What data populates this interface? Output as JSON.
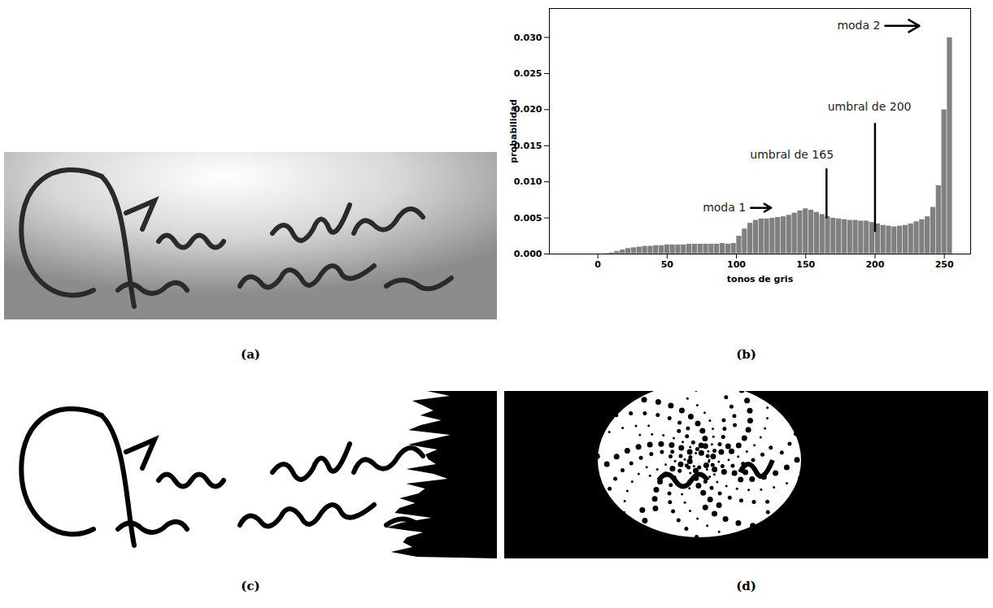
{
  "panel_labels": [
    "(a)",
    "(b)",
    "(c)",
    "(d)"
  ],
  "chart_data": {
    "type": "histogram",
    "x_label": "tonos de gris",
    "y_label": "probabilidad",
    "color": "#808080",
    "bins": [
      0,
      4,
      8,
      12,
      16,
      20,
      24,
      28,
      32,
      36,
      40,
      44,
      48,
      52,
      56,
      60,
      64,
      68,
      72,
      76,
      80,
      84,
      88,
      92,
      96,
      100,
      104,
      108,
      112,
      116,
      120,
      124,
      128,
      132,
      136,
      140,
      144,
      148,
      152,
      156,
      160,
      164,
      168,
      172,
      176,
      180,
      184,
      188,
      192,
      196,
      200,
      204,
      208,
      212,
      216,
      220,
      224,
      228,
      232,
      236,
      240,
      244,
      248,
      252,
      256
    ],
    "values": [
      0.0,
      0.0001,
      0.0002,
      0.0004,
      0.0006,
      0.0008,
      0.0009,
      0.001,
      0.0011,
      0.0011,
      0.0012,
      0.0012,
      0.0013,
      0.0013,
      0.0013,
      0.0013,
      0.0014,
      0.0014,
      0.0014,
      0.0014,
      0.0014,
      0.0014,
      0.0015,
      0.0014,
      0.0015,
      0.0025,
      0.0035,
      0.0043,
      0.0047,
      0.0049,
      0.0049,
      0.005,
      0.0051,
      0.0052,
      0.0054,
      0.0057,
      0.006,
      0.0063,
      0.0061,
      0.0058,
      0.0055,
      0.0052,
      0.005,
      0.0049,
      0.0048,
      0.0047,
      0.0047,
      0.0046,
      0.0046,
      0.0044,
      0.0042,
      0.004,
      0.0039,
      0.0038,
      0.0039,
      0.004,
      0.0042,
      0.0045,
      0.0048,
      0.0052,
      0.0065,
      0.0095,
      0.02,
      0.03
    ],
    "xlim": [
      -35,
      269
    ],
    "xticks": [
      0,
      50,
      100,
      150,
      200,
      250
    ],
    "ylim": [
      0,
      0.034
    ],
    "yticks": [
      {
        "value": 0,
        "label": "0.000"
      },
      {
        "value": 0.005,
        "label": "0.005"
      },
      {
        "value": 0.01,
        "label": "0.010"
      },
      {
        "value": 0.015,
        "label": "0.015"
      },
      {
        "value": 0.02,
        "label": "0.020"
      },
      {
        "value": 0.025,
        "label": "0.025"
      },
      {
        "value": 0.03,
        "label": "0.030"
      }
    ],
    "annotations": [
      {
        "text": "moda 1",
        "x": 125,
        "y": 0.0064,
        "text_x": 108,
        "text_y": 0.0064,
        "marker": "arrow"
      },
      {
        "text": "moda 2",
        "x": 232,
        "y": 0.0316,
        "text_x": 205,
        "text_y": 0.0316,
        "marker": "arrow"
      }
    ],
    "thresholds": [
      {
        "text": "umbral de 165",
        "x": 165,
        "y1": 0.0049,
        "y2": 0.0118,
        "text_x": 140,
        "text_y": 0.0137
      },
      {
        "text": "umbral de 200",
        "x": 200,
        "y1": 0.003,
        "y2": 0.0181,
        "text_x": 196,
        "text_y": 0.0204
      }
    ]
  }
}
